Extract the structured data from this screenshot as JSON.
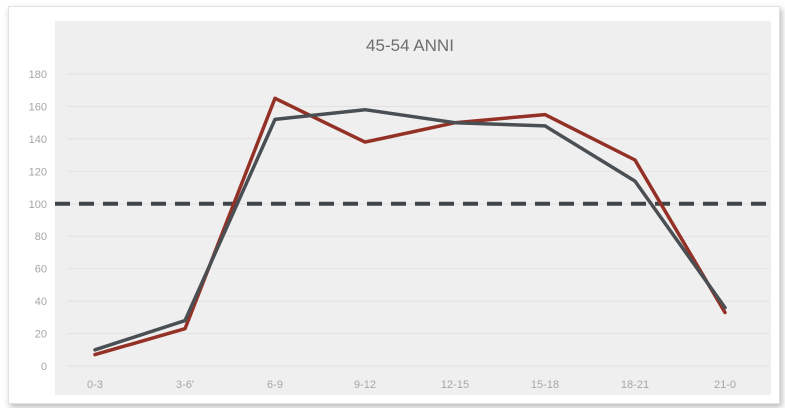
{
  "chart_data": {
    "type": "line",
    "title": "45-54 ANNI",
    "categories": [
      "0-3",
      "3-6'",
      "6-9",
      "9-12",
      "12-15",
      "15-18",
      "18-21",
      "21-0"
    ],
    "series": [
      {
        "color": "#943126",
        "values": [
          7,
          23,
          165,
          138,
          150,
          155,
          127,
          33
        ]
      },
      {
        "color": "#4a4f54",
        "values": [
          10,
          28,
          152,
          158,
          150,
          148,
          114,
          36
        ]
      }
    ],
    "reference_line": {
      "value": 100,
      "style": "dashed",
      "color": "#3f4449"
    },
    "yticks": [
      0,
      20,
      40,
      60,
      80,
      100,
      120,
      140,
      160,
      180
    ],
    "ylim": [
      0,
      180
    ],
    "grid": true,
    "plot_background": "#efefef",
    "legend": "none"
  }
}
